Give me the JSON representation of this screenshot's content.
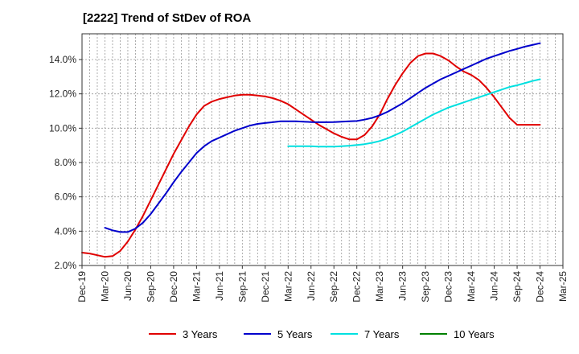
{
  "chart_data": {
    "type": "line",
    "title": "[2222]  Trend of StDev of ROA",
    "xlabel": "",
    "ylabel": "",
    "x_ticks": [
      "Dec-19",
      "Mar-20",
      "Jun-20",
      "Sep-20",
      "Dec-20",
      "Mar-21",
      "Jun-21",
      "Sep-21",
      "Dec-21",
      "Mar-22",
      "Jun-22",
      "Sep-22",
      "Dec-22",
      "Mar-23",
      "Jun-23",
      "Sep-23",
      "Dec-23",
      "Mar-24",
      "Jun-24",
      "Sep-24",
      "Dec-24",
      "Mar-25"
    ],
    "y_ticks": [
      "2.0%",
      "4.0%",
      "6.0%",
      "8.0%",
      "10.0%",
      "12.0%",
      "14.0%"
    ],
    "ylim": [
      2.0,
      15.5
    ],
    "grid": true,
    "legend_position": "bottom",
    "series": [
      {
        "name": "3 Years",
        "color": "#e00000",
        "x": [
          "Dec-19",
          "Jan-20",
          "Feb-20",
          "Mar-20",
          "Apr-20",
          "May-20",
          "Jun-20",
          "Jul-20",
          "Aug-20",
          "Sep-20",
          "Oct-20",
          "Nov-20",
          "Dec-20",
          "Jan-21",
          "Feb-21",
          "Mar-21",
          "Apr-21",
          "May-21",
          "Jun-21",
          "Jul-21",
          "Aug-21",
          "Sep-21",
          "Oct-21",
          "Nov-21",
          "Dec-21",
          "Jan-22",
          "Feb-22",
          "Mar-22",
          "Apr-22",
          "May-22",
          "Jun-22",
          "Jul-22",
          "Aug-22",
          "Sep-22",
          "Oct-22",
          "Nov-22",
          "Dec-22",
          "Jan-23",
          "Feb-23",
          "Mar-23",
          "Apr-23",
          "May-23",
          "Jun-23",
          "Jul-23",
          "Aug-23",
          "Sep-23",
          "Oct-23",
          "Nov-23",
          "Dec-23",
          "Jan-24",
          "Feb-24",
          "Mar-24",
          "Apr-24",
          "May-24",
          "Jun-24",
          "Jul-24",
          "Aug-24",
          "Sep-24",
          "Oct-24",
          "Nov-24",
          "Dec-24"
        ],
        "values": [
          2.75,
          2.7,
          2.6,
          2.5,
          2.55,
          2.85,
          3.4,
          4.1,
          4.9,
          5.8,
          6.7,
          7.6,
          8.5,
          9.3,
          10.1,
          10.8,
          11.3,
          11.55,
          11.7,
          11.8,
          11.9,
          11.95,
          11.95,
          11.9,
          11.85,
          11.75,
          11.6,
          11.4,
          11.1,
          10.8,
          10.5,
          10.2,
          9.95,
          9.7,
          9.5,
          9.35,
          9.35,
          9.6,
          10.1,
          10.8,
          11.7,
          12.5,
          13.2,
          13.8,
          14.2,
          14.35,
          14.35,
          14.2,
          13.95,
          13.6,
          13.3,
          13.1,
          12.8,
          12.35,
          11.8,
          11.2,
          10.6,
          10.2,
          10.2,
          10.2,
          10.2
        ],
        "labels_shown": false
      },
      {
        "name": "5 Years",
        "color": "#0000cc",
        "x": [
          "Mar-20",
          "Apr-20",
          "May-20",
          "Jun-20",
          "Jul-20",
          "Aug-20",
          "Sep-20",
          "Oct-20",
          "Nov-20",
          "Dec-20",
          "Jan-21",
          "Feb-21",
          "Mar-21",
          "Apr-21",
          "May-21",
          "Jun-21",
          "Jul-21",
          "Aug-21",
          "Sep-21",
          "Oct-21",
          "Nov-21",
          "Dec-21",
          "Jan-22",
          "Feb-22",
          "Mar-22",
          "Apr-22",
          "May-22",
          "Jun-22",
          "Jul-22",
          "Aug-22",
          "Sep-22",
          "Oct-22",
          "Nov-22",
          "Dec-22",
          "Jan-23",
          "Feb-23",
          "Mar-23",
          "Apr-23",
          "May-23",
          "Jun-23",
          "Jul-23",
          "Aug-23",
          "Sep-23",
          "Oct-23",
          "Nov-23",
          "Dec-23",
          "Jan-24",
          "Feb-24",
          "Mar-24",
          "Apr-24",
          "May-24",
          "Jun-24",
          "Jul-24",
          "Aug-24",
          "Sep-24",
          "Oct-24",
          "Nov-24",
          "Dec-24"
        ],
        "values": [
          4.2,
          4.05,
          3.95,
          3.95,
          4.15,
          4.5,
          5.0,
          5.6,
          6.2,
          6.85,
          7.45,
          8.0,
          8.55,
          8.95,
          9.25,
          9.45,
          9.65,
          9.85,
          10.0,
          10.15,
          10.25,
          10.3,
          10.35,
          10.4,
          10.4,
          10.4,
          10.38,
          10.36,
          10.35,
          10.35,
          10.36,
          10.38,
          10.4,
          10.42,
          10.5,
          10.6,
          10.75,
          10.95,
          11.2,
          11.45,
          11.75,
          12.05,
          12.35,
          12.6,
          12.85,
          13.05,
          13.25,
          13.45,
          13.65,
          13.85,
          14.05,
          14.2,
          14.35,
          14.5,
          14.62,
          14.75,
          14.85,
          14.95
        ],
        "labels_shown": false
      },
      {
        "name": "7 Years",
        "color": "#00e0e0",
        "x": [
          "Mar-22",
          "Apr-22",
          "May-22",
          "Jun-22",
          "Jul-22",
          "Aug-22",
          "Sep-22",
          "Oct-22",
          "Nov-22",
          "Dec-22",
          "Jan-23",
          "Feb-23",
          "Mar-23",
          "Apr-23",
          "May-23",
          "Jun-23",
          "Jul-23",
          "Aug-23",
          "Sep-23",
          "Oct-23",
          "Nov-23",
          "Dec-23",
          "Jan-24",
          "Feb-24",
          "Mar-24",
          "Apr-24",
          "May-24",
          "Jun-24",
          "Jul-24",
          "Aug-24",
          "Sep-24",
          "Oct-24",
          "Nov-24",
          "Dec-24"
        ],
        "values": [
          8.95,
          8.95,
          8.95,
          8.95,
          8.93,
          8.93,
          8.93,
          8.95,
          8.98,
          9.02,
          9.07,
          9.15,
          9.25,
          9.4,
          9.6,
          9.8,
          10.05,
          10.3,
          10.55,
          10.8,
          11.0,
          11.2,
          11.35,
          11.5,
          11.65,
          11.8,
          11.95,
          12.1,
          12.25,
          12.4,
          12.5,
          12.62,
          12.75,
          12.85
        ],
        "labels_shown": false
      },
      {
        "name": "10 Years",
        "color": "#008000",
        "x": [],
        "values": [],
        "labels_shown": false
      }
    ]
  }
}
